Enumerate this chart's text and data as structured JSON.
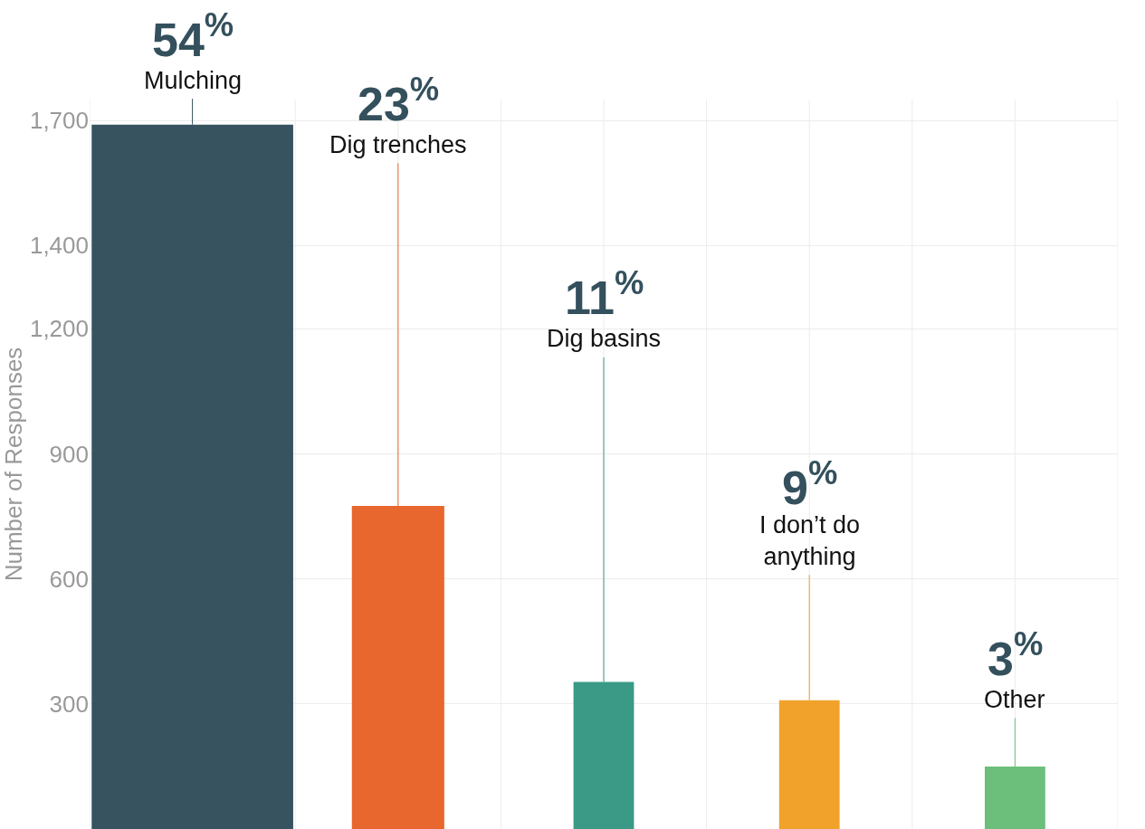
{
  "chart_data": {
    "type": "bar",
    "ylabel": "Number of Responses",
    "categories": [
      null,
      null,
      null,
      null,
      null
    ],
    "values": [
      1690,
      775,
      353,
      309,
      150
    ],
    "colors": [
      "#37535f",
      "#e8672e",
      "#3a9a86",
      "#f0a22b",
      "#6bbf7a"
    ],
    "annotations": [
      {
        "text": "54$^{%}$",
        "y": 1690
      },
      {
        "text": "23$^{%}$",
        "y": 775
      },
      {
        "text": "11$^{%}$",
        "y": 353
      },
      {
        "text": "9$^{%}$",
        "y": 309
      },
      {
        "text": "3$^{%}$",
        "y": 150
      },
      {
        "text": "Mulching",
        "y": 1690
      },
      {
        "text": "Dig trenches",
        "y": 775
      },
      {
        "text": "Dig basins",
        "y": 353
      },
      {
        "text": "I don’t do anything",
        "y": 309
      },
      {
        "text": "Other",
        "y": 150
      }
    ],
    "ylim": [
      0,
      1750
    ],
    "yticks": [
      300,
      600,
      900,
      {
        "value": 1200,
        "label": "1,200"
      },
      {
        "value": 1400,
        "label": "1,400"
      },
      {
        "value": 1700,
        "label": "1,700"
      }
    ],
    "grid": true,
    "tick_labels": "y"
  }
}
